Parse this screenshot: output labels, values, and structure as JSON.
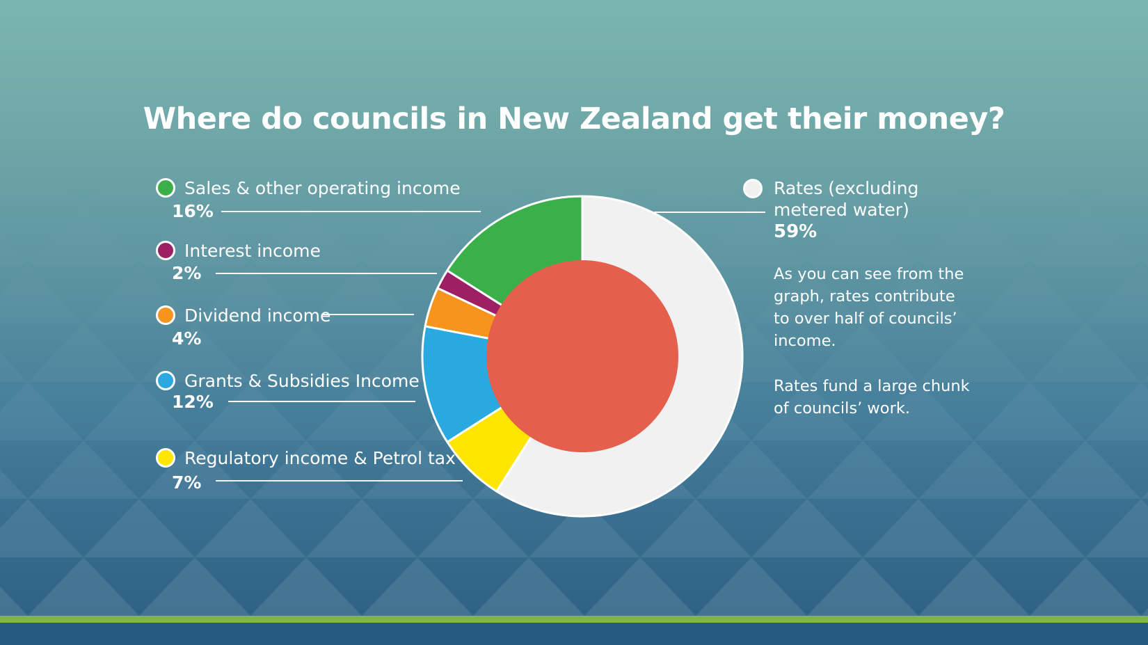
{
  "chart_data": {
    "type": "donut",
    "title": "Where do councils in New Zealand get their money?",
    "unit": "%",
    "direction": "clockwise",
    "start_angle_deg": 0,
    "outer_radius_px": 230,
    "separator_color": "#FFFFFF",
    "center_circle": {
      "color": "#E5604C",
      "radius_px": 138
    },
    "slices": [
      {
        "label": "Rates (excluding metered water)",
        "label_display": "Rates (excluding\nmetered water)",
        "value": 59,
        "display": "59%",
        "color": "#F1F1F2"
      },
      {
        "label": "Regulatory income & Petrol tax",
        "value": 7,
        "display": "7%",
        "color": "#FFE600"
      },
      {
        "label": "Grants & Subsidies Income",
        "value": 12,
        "display": "12%",
        "color": "#29A9E0"
      },
      {
        "label": "Dividend income",
        "value": 4,
        "display": "4%",
        "color": "#F7941E"
      },
      {
        "label": "Interest income",
        "value": 2,
        "display": "2%",
        "color": "#9C2063"
      },
      {
        "label": "Sales & other operating income",
        "value": 16,
        "display": "16%",
        "color": "#3BB04A"
      }
    ],
    "legend_position": "left-and-right"
  },
  "annotation": {
    "p1": "As you can see from the\ngraph, rates contribute\nto over half of councils’\nincome.",
    "p2": "Rates fund a large chunk\nof councils’ work."
  },
  "background": {
    "gradient_top": "#7BB5AF",
    "gradient_bottom": "#2F6285",
    "pattern": "triangles",
    "stripe_color": "#82B440",
    "footer_color": "#245A7D"
  }
}
